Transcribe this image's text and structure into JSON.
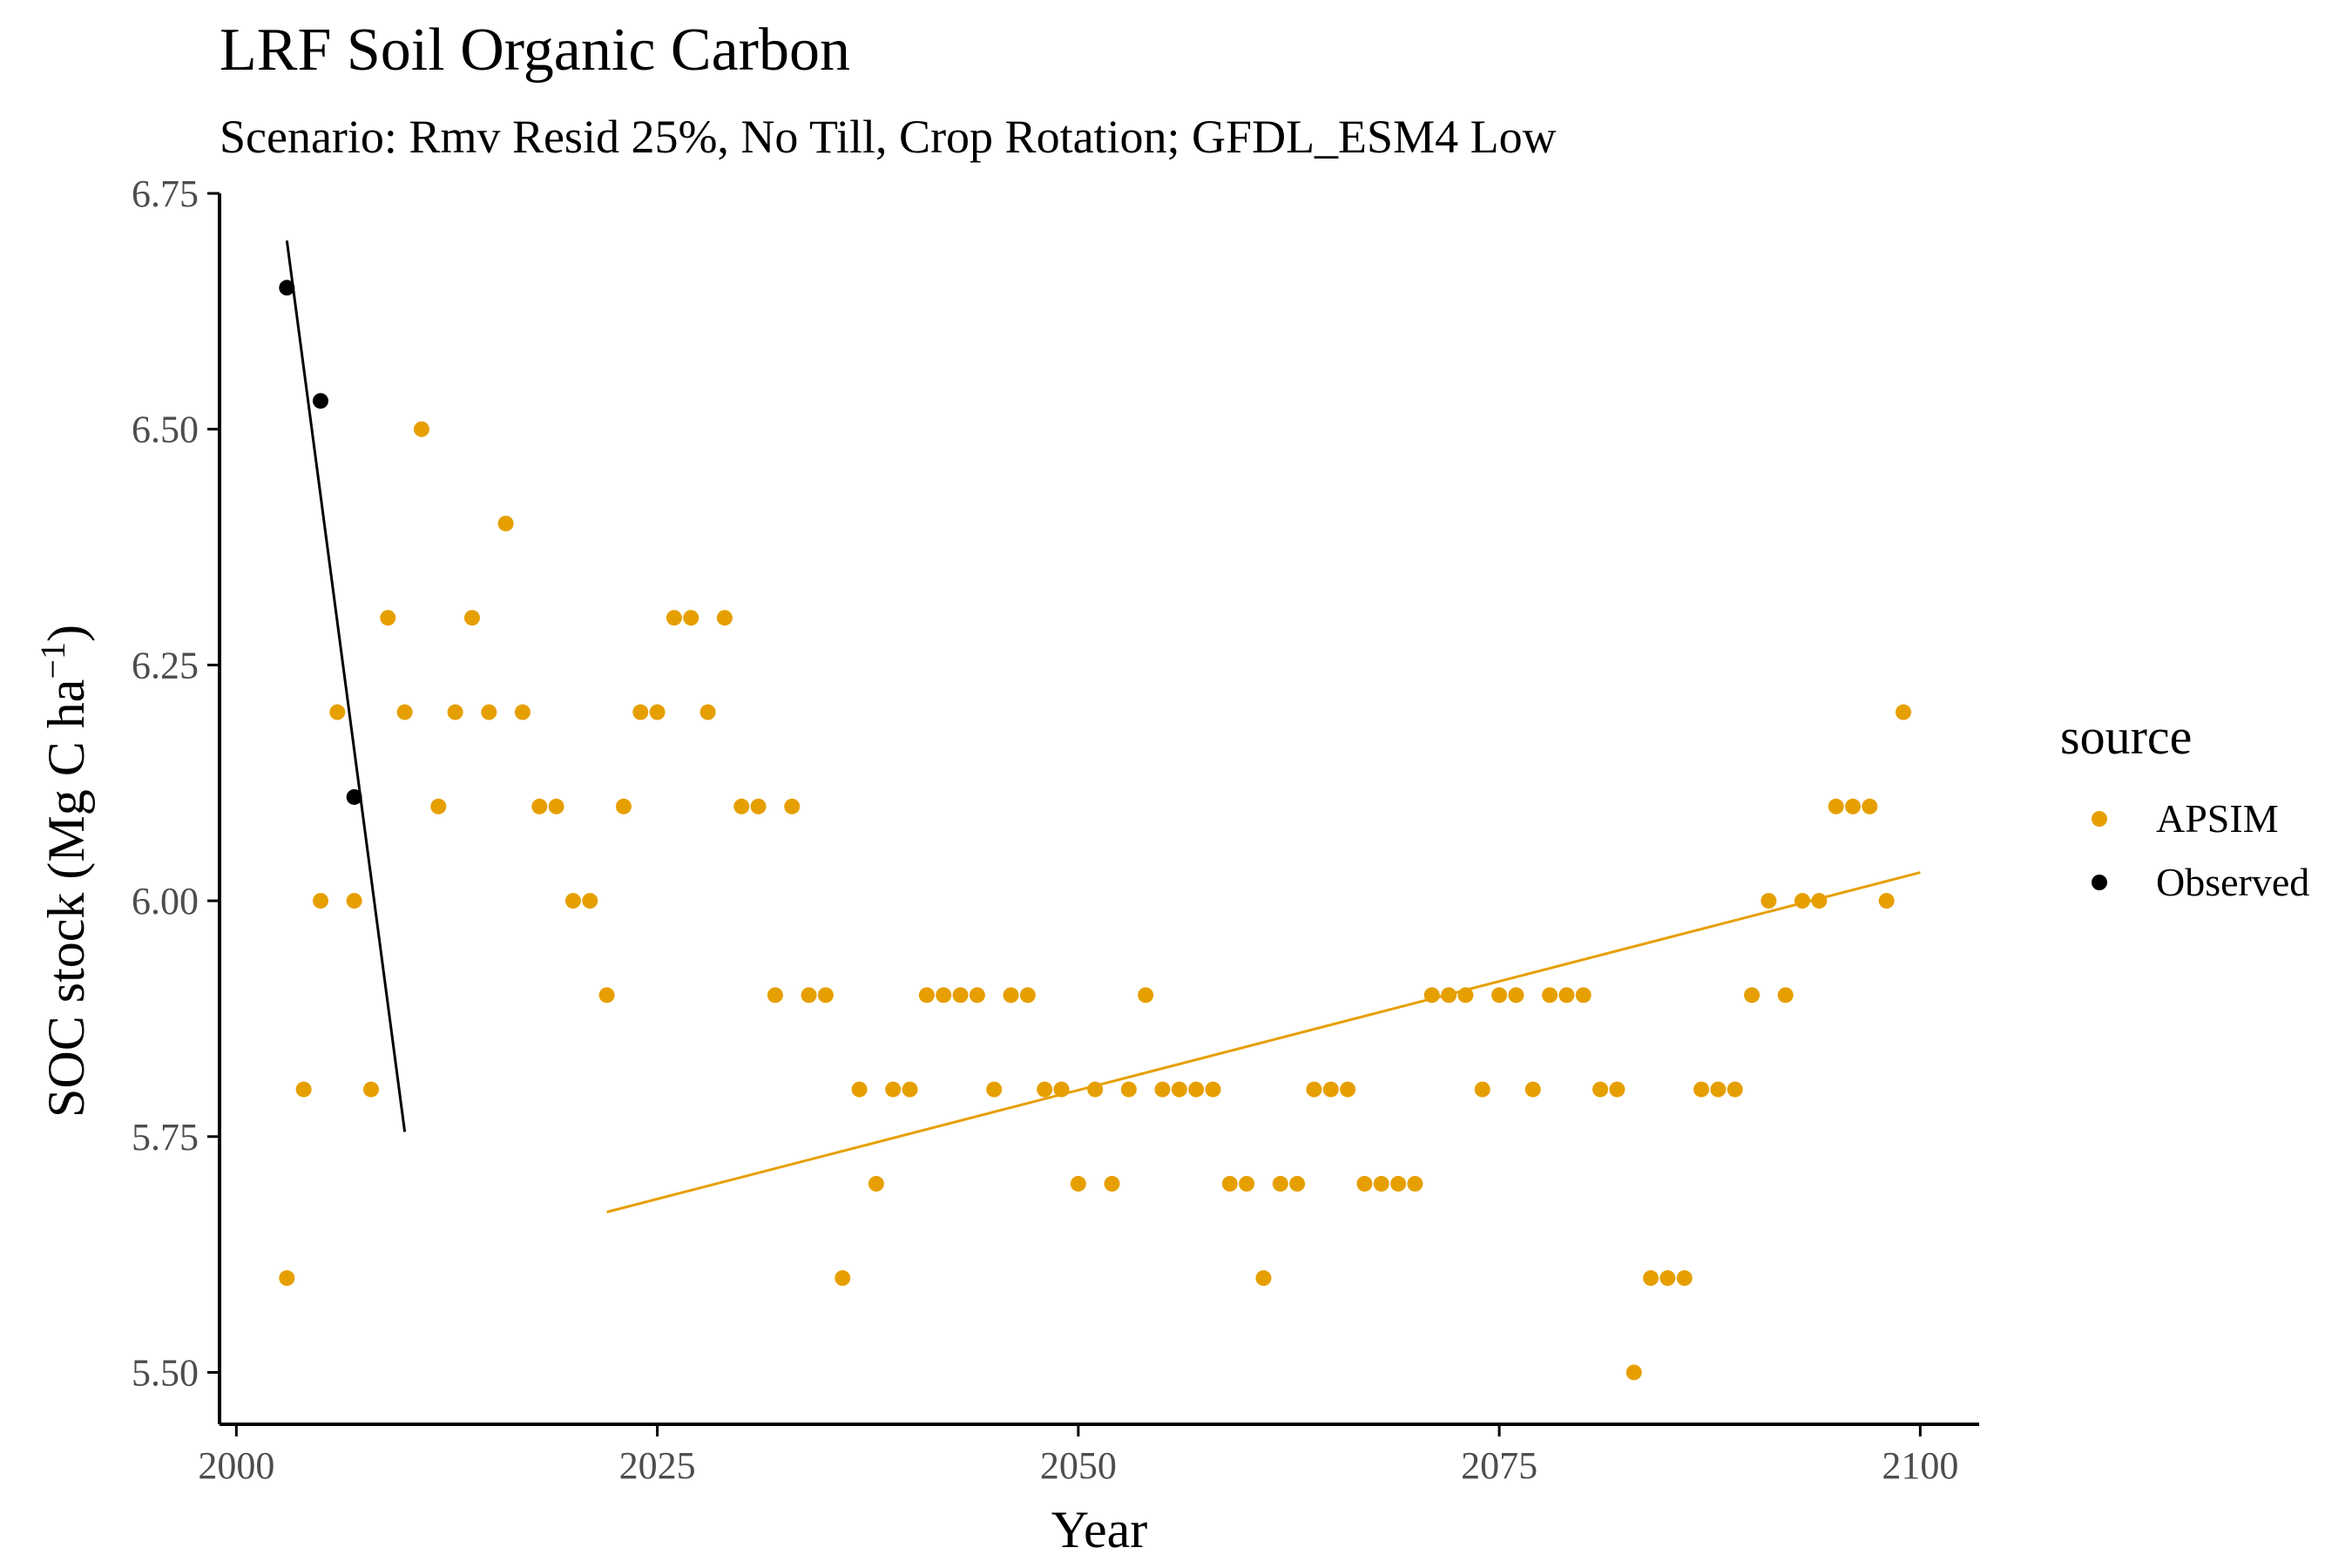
{
  "chart_data": {
    "type": "scatter",
    "title": "LRF Soil Organic Carbon",
    "subtitle": "Scenario: Rmv Resid 25%, No Till, Crop Rotation; GFDL_ESM4 Low",
    "xlabel": "Year",
    "ylabel": "SOC stock (Mg C ha",
    "ylabel_sup": "−1",
    "ylabel_close": ")",
    "xlim": [
      1999,
      2103.5
    ],
    "ylim": [
      5.445,
      6.75
    ],
    "x_ticks": [
      2000,
      2025,
      2050,
      2075,
      2100
    ],
    "y_ticks": [
      5.5,
      5.75,
      6.0,
      6.25,
      6.5,
      6.75
    ],
    "y_tick_labels": [
      "5.50",
      "5.75",
      "6.00",
      "6.25",
      "6.50",
      "6.75"
    ],
    "grid": false,
    "legend": {
      "title": "source",
      "placement": "right"
    },
    "series": [
      {
        "name": "APSIM",
        "color": "#E69F00",
        "points": [
          [
            2003,
            5.6
          ],
          [
            2004,
            5.8
          ],
          [
            2005,
            6.0
          ],
          [
            2006,
            6.2
          ],
          [
            2007,
            6.0
          ],
          [
            2008,
            5.8
          ],
          [
            2009,
            6.3
          ],
          [
            2010,
            6.2
          ],
          [
            2011,
            6.5
          ],
          [
            2012,
            6.1
          ],
          [
            2013,
            6.2
          ],
          [
            2014,
            6.3
          ],
          [
            2015,
            6.2
          ],
          [
            2016,
            6.4
          ],
          [
            2017,
            6.2
          ],
          [
            2018,
            6.1
          ],
          [
            2019,
            6.1
          ],
          [
            2020,
            6.0
          ],
          [
            2021,
            6.0
          ],
          [
            2022,
            5.9
          ],
          [
            2023,
            6.1
          ],
          [
            2024,
            6.2
          ],
          [
            2025,
            6.2
          ],
          [
            2026,
            6.3
          ],
          [
            2027,
            6.3
          ],
          [
            2028,
            6.2
          ],
          [
            2029,
            6.3
          ],
          [
            2030,
            6.1
          ],
          [
            2031,
            6.1
          ],
          [
            2032,
            5.9
          ],
          [
            2033,
            6.1
          ],
          [
            2034,
            5.9
          ],
          [
            2035,
            5.9
          ],
          [
            2036,
            5.6
          ],
          [
            2037,
            5.8
          ],
          [
            2038,
            5.7
          ],
          [
            2039,
            5.8
          ],
          [
            2040,
            5.8
          ],
          [
            2041,
            5.9
          ],
          [
            2042,
            5.9
          ],
          [
            2043,
            5.9
          ],
          [
            2044,
            5.9
          ],
          [
            2045,
            5.8
          ],
          [
            2046,
            5.9
          ],
          [
            2047,
            5.9
          ],
          [
            2048,
            5.8
          ],
          [
            2049,
            5.8
          ],
          [
            2050,
            5.7
          ],
          [
            2051,
            5.8
          ],
          [
            2052,
            5.7
          ],
          [
            2053,
            5.8
          ],
          [
            2054,
            5.9
          ],
          [
            2055,
            5.8
          ],
          [
            2056,
            5.8
          ],
          [
            2057,
            5.8
          ],
          [
            2058,
            5.8
          ],
          [
            2059,
            5.7
          ],
          [
            2060,
            5.7
          ],
          [
            2061,
            5.6
          ],
          [
            2062,
            5.7
          ],
          [
            2063,
            5.7
          ],
          [
            2064,
            5.8
          ],
          [
            2065,
            5.8
          ],
          [
            2066,
            5.8
          ],
          [
            2067,
            5.7
          ],
          [
            2068,
            5.7
          ],
          [
            2069,
            5.7
          ],
          [
            2070,
            5.7
          ],
          [
            2071,
            5.9
          ],
          [
            2072,
            5.9
          ],
          [
            2073,
            5.9
          ],
          [
            2074,
            5.8
          ],
          [
            2075,
            5.9
          ],
          [
            2076,
            5.9
          ],
          [
            2077,
            5.8
          ],
          [
            2078,
            5.9
          ],
          [
            2079,
            5.9
          ],
          [
            2080,
            5.9
          ],
          [
            2081,
            5.8
          ],
          [
            2082,
            5.8
          ],
          [
            2083,
            5.5
          ],
          [
            2084,
            5.6
          ],
          [
            2085,
            5.6
          ],
          [
            2086,
            5.6
          ],
          [
            2087,
            5.8
          ],
          [
            2088,
            5.8
          ],
          [
            2089,
            5.8
          ],
          [
            2090,
            5.9
          ],
          [
            2091,
            6.0
          ],
          [
            2092,
            5.9
          ],
          [
            2093,
            6.0
          ],
          [
            2094,
            6.0
          ],
          [
            2095,
            6.1
          ],
          [
            2096,
            6.1
          ],
          [
            2097,
            6.1
          ],
          [
            2098,
            6.0
          ],
          [
            2099,
            6.2
          ]
        ],
        "trend": {
          "x": [
            2022,
            2100
          ],
          "y": [
            5.67,
            6.03
          ]
        }
      },
      {
        "name": "Observed",
        "color": "#000000",
        "points": [
          [
            2003,
            6.65
          ],
          [
            2005,
            6.53
          ],
          [
            2007,
            6.11
          ]
        ],
        "trend": {
          "x": [
            2003,
            2010
          ],
          "y": [
            6.7,
            5.755
          ]
        }
      }
    ]
  }
}
